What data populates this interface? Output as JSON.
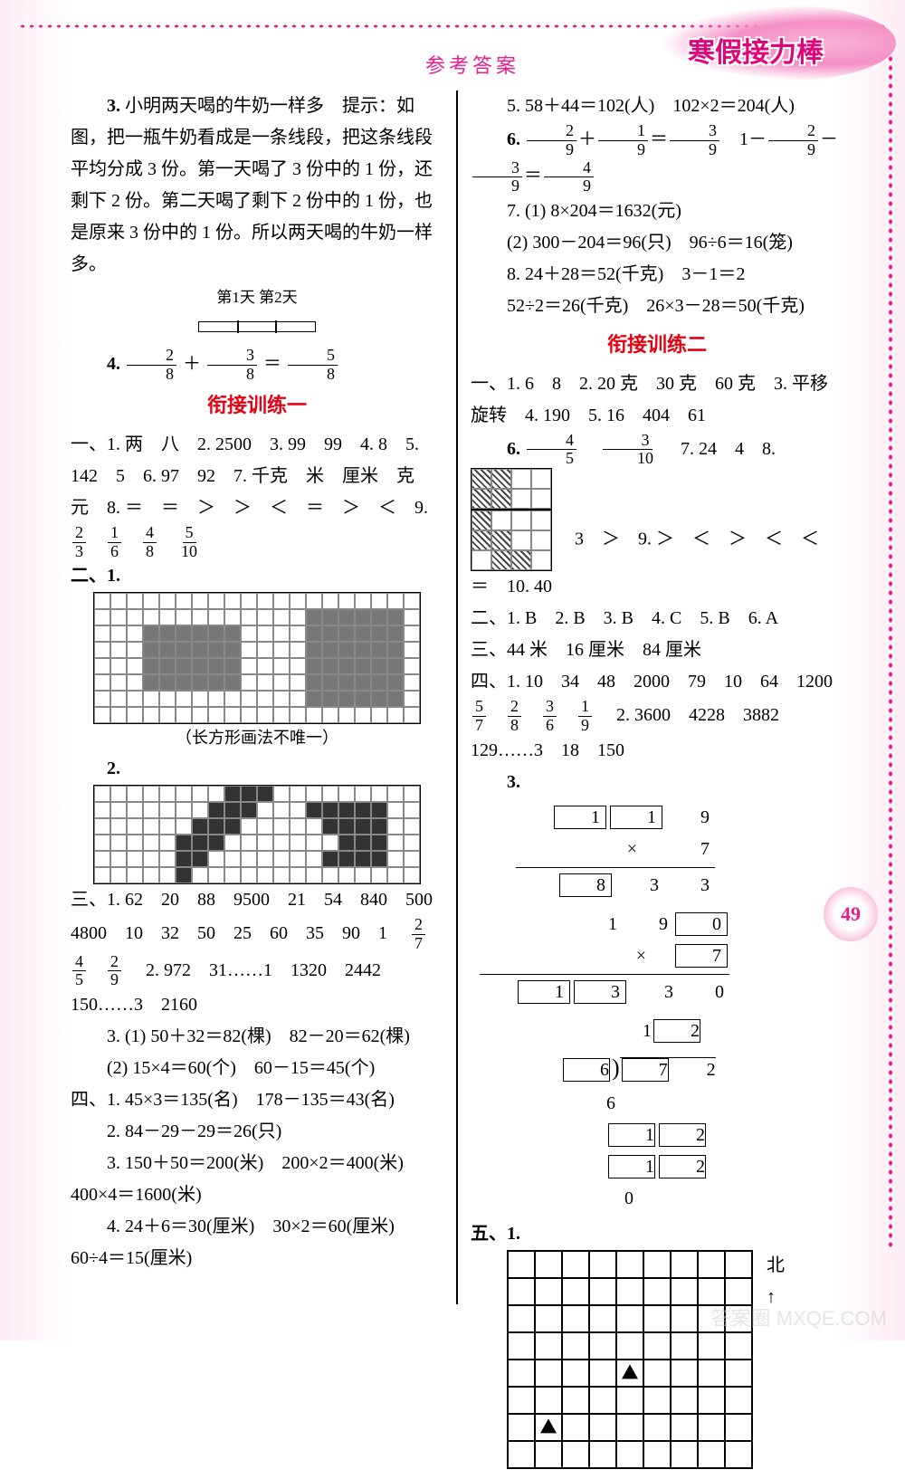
{
  "header": {
    "title": "参考答案",
    "badge": "寒假接力棒",
    "pageNum": "49"
  },
  "left": {
    "p3_title": "3.",
    "p3": " 小明两天喝的牛奶一样多　提示：如图，把一瓶牛奶看成是一条线段，把这条线段平均分成 3 份。第一天喝了 3 份中的 1 份，还剩下 2 份。第二天喝了剩下 2 份中的 1 份，也是原来 3 份中的 1 份。所以两天喝的牛奶一样多。",
    "dayLabels": "第1天 第2天",
    "p4": {
      "label": "4.",
      "f1n": "2",
      "f1d": "8",
      "op1": "＋",
      "f2n": "3",
      "f2d": "8",
      "eq": "＝",
      "f3n": "5",
      "f3d": "8"
    },
    "section1": "衔接训练一",
    "s1_1": "一、1. 两　八　2. 2500　3. 99　99　4. 8　5. 142　5　6. 97　92　7. 千克　米　厘米　克　元　8. ＝　＝　＞　＞　＜　＝　＞　＜　9.",
    "s1_1_fracs": [
      {
        "n": "2",
        "d": "3"
      },
      {
        "n": "1",
        "d": "6"
      },
      {
        "n": "4",
        "d": "8"
      },
      {
        "n": "5",
        "d": "10"
      }
    ],
    "s1_2": "二、1.",
    "s1_2_note": "（长方形画法不唯一）",
    "s1_2b": "2.",
    "s1_3": "三、1. 62　20　88　9500　21　54　840　500　4800　10　32　50　25　60　35　90　1　",
    "s1_3_fracs": [
      {
        "n": "2",
        "d": "7"
      },
      {
        "n": "4",
        "d": "5"
      },
      {
        "n": "2",
        "d": "9"
      }
    ],
    "s1_3b": "　2. 972　31……1　1320　2442　150……3　2160",
    "s1_3c": "3. (1) 50＋32＝82(棵)　82－20＝62(棵)",
    "s1_3d": "(2) 15×4＝60(个)　60－15＝45(个)",
    "s1_4a": "四、1. 45×3＝135(名)　178－135＝43(名)",
    "s1_4b": "2. 84－29－29＝26(只)",
    "s1_4c": "3. 150＋50＝200(米)　200×2＝400(米)　400×4＝1600(米)",
    "s1_4d": "4. 24＋6＝30(厘米)　30×2＝60(厘米)　60÷4＝15(厘米)"
  },
  "right": {
    "r5": "5. 58＋44＝102(人)　102×2＝204(人)",
    "r6": {
      "label": "6.",
      "a": [
        {
          "n": "2",
          "d": "9"
        },
        "＋",
        {
          "n": "1",
          "d": "9"
        },
        "＝",
        {
          "n": "3",
          "d": "9"
        },
        "　1－",
        {
          "n": "2",
          "d": "9"
        },
        "－",
        {
          "n": "3",
          "d": "9"
        },
        "＝",
        {
          "n": "4",
          "d": "9"
        }
      ]
    },
    "r7a": "7. (1) 8×204＝1632(元)",
    "r7b": "(2) 300－204＝96(只)　96÷6＝16(笼)",
    "r8a": "8. 24＋28＝52(千克)　3－1＝2",
    "r8b": "52÷2＝26(千克)　26×3－28＝50(千克)",
    "section2": "衔接训练二",
    "s2_1a": "一、1. 6　8　2. 20 克　30 克　60 克　3. 平移　旋转　4. 190　5. 16　404　61",
    "s2_1b": {
      "label": "6.",
      "fracs": [
        {
          "n": "4",
          "d": "5"
        },
        {
          "n": "3",
          "d": "10"
        }
      ],
      "tail": "　7. 24　4　8."
    },
    "s2_1c": "　3　＞　9. ＞　＜　＞　＜　＜　＝　10. 40",
    "s2_2": "二、1. B　2. B　3. B　4. C　5. B　6. A",
    "s2_3": "三、44 米　16 厘米　84 厘米",
    "s2_4a": "四、1. 10　34　48　2000　79　10　64　1200　",
    "s2_4a_fracs": [
      {
        "n": "5",
        "d": "7"
      },
      {
        "n": "2",
        "d": "8"
      },
      {
        "n": "3",
        "d": "6"
      },
      {
        "n": "1",
        "d": "9"
      }
    ],
    "s2_4a_tail": "　2. 3600　4228　3882　129……3　18　150",
    "s2_4_3label": "3.",
    "mult1": {
      "top": [
        "[1]",
        "[1]",
        "9"
      ],
      "mid": [
        "×",
        "",
        "7"
      ],
      "res": [
        "[8]",
        "3",
        "3"
      ]
    },
    "mult2": {
      "top": [
        "1",
        "9",
        "[0]"
      ],
      "mid": [
        "×",
        "",
        "[7]"
      ],
      "res": [
        "[1]",
        "[3]",
        "3",
        "0"
      ]
    },
    "div": {
      "quotient": [
        "1",
        "[2]"
      ],
      "divisor": "[6]",
      "dividend": [
        "[7]",
        "2"
      ],
      "step1": "6",
      "rem": [
        "[1]",
        "[2]"
      ],
      "rem2": [
        "[1]",
        "[2]"
      ],
      "final": "0"
    },
    "s2_5": "五、1.",
    "north": "北"
  },
  "watermark": "答案圈 MXQE.COM"
}
